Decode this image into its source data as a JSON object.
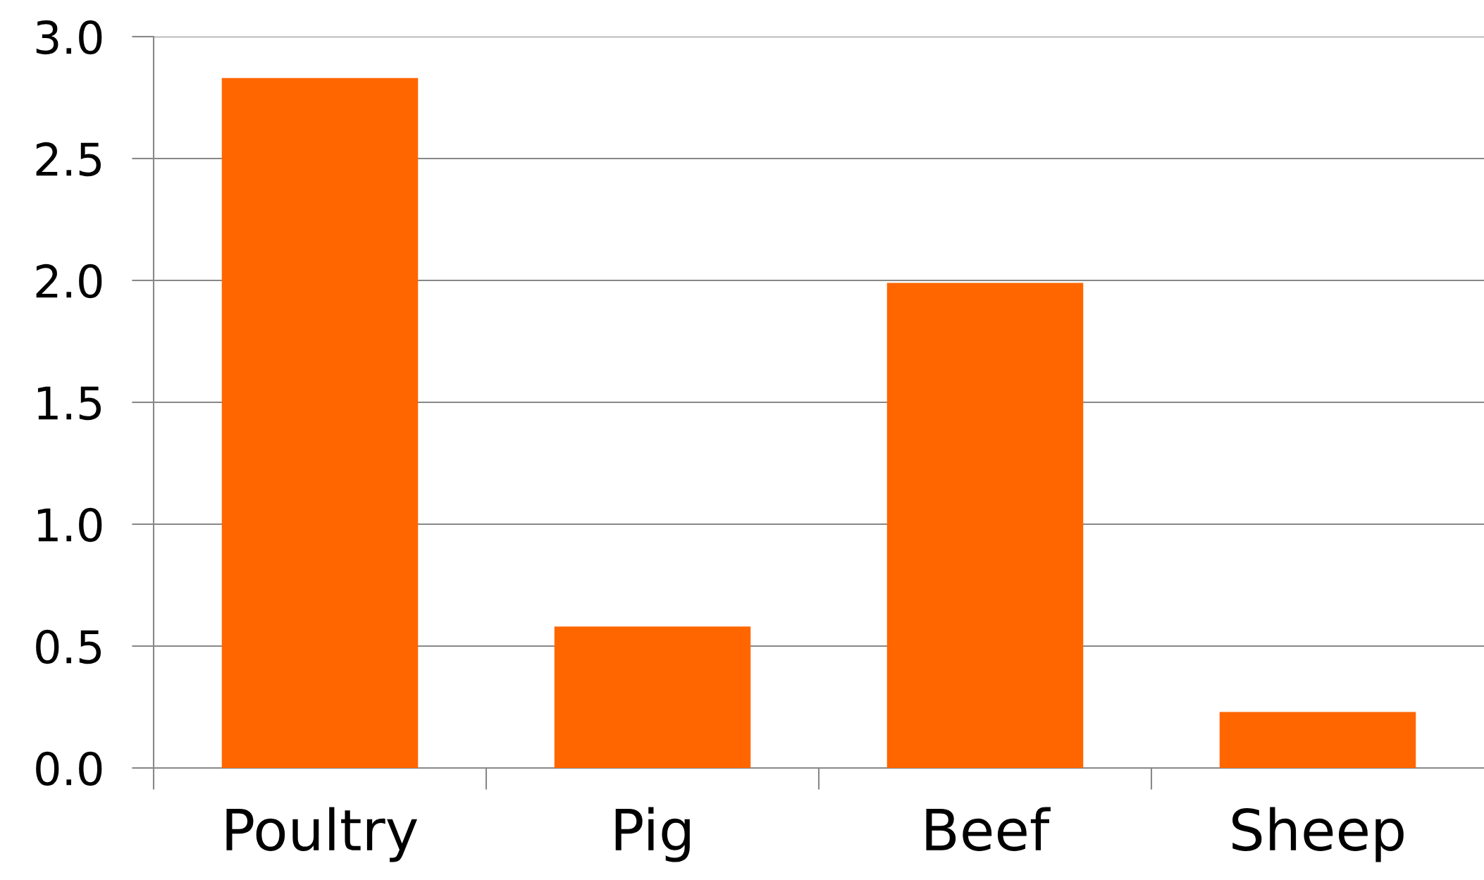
{
  "chart_data": {
    "type": "bar",
    "categories": [
      "Poultry",
      "Pig",
      "Beef",
      "Sheep"
    ],
    "values": [
      2.83,
      0.58,
      1.99,
      0.23
    ],
    "color": "#ff6600",
    "ylim": [
      0,
      3.0
    ],
    "yticks": [
      {
        "value": 0,
        "label": "0.0"
      },
      {
        "value": 0.5,
        "label": "0.5"
      },
      {
        "value": 1.0,
        "label": "1.0"
      },
      {
        "value": 1.5,
        "label": "1.5"
      },
      {
        "value": 2.0,
        "label": "2.0"
      },
      {
        "value": 2.5,
        "label": "2.5"
      },
      {
        "value": 3.0,
        "label": "3.0"
      }
    ],
    "grid": "y"
  }
}
